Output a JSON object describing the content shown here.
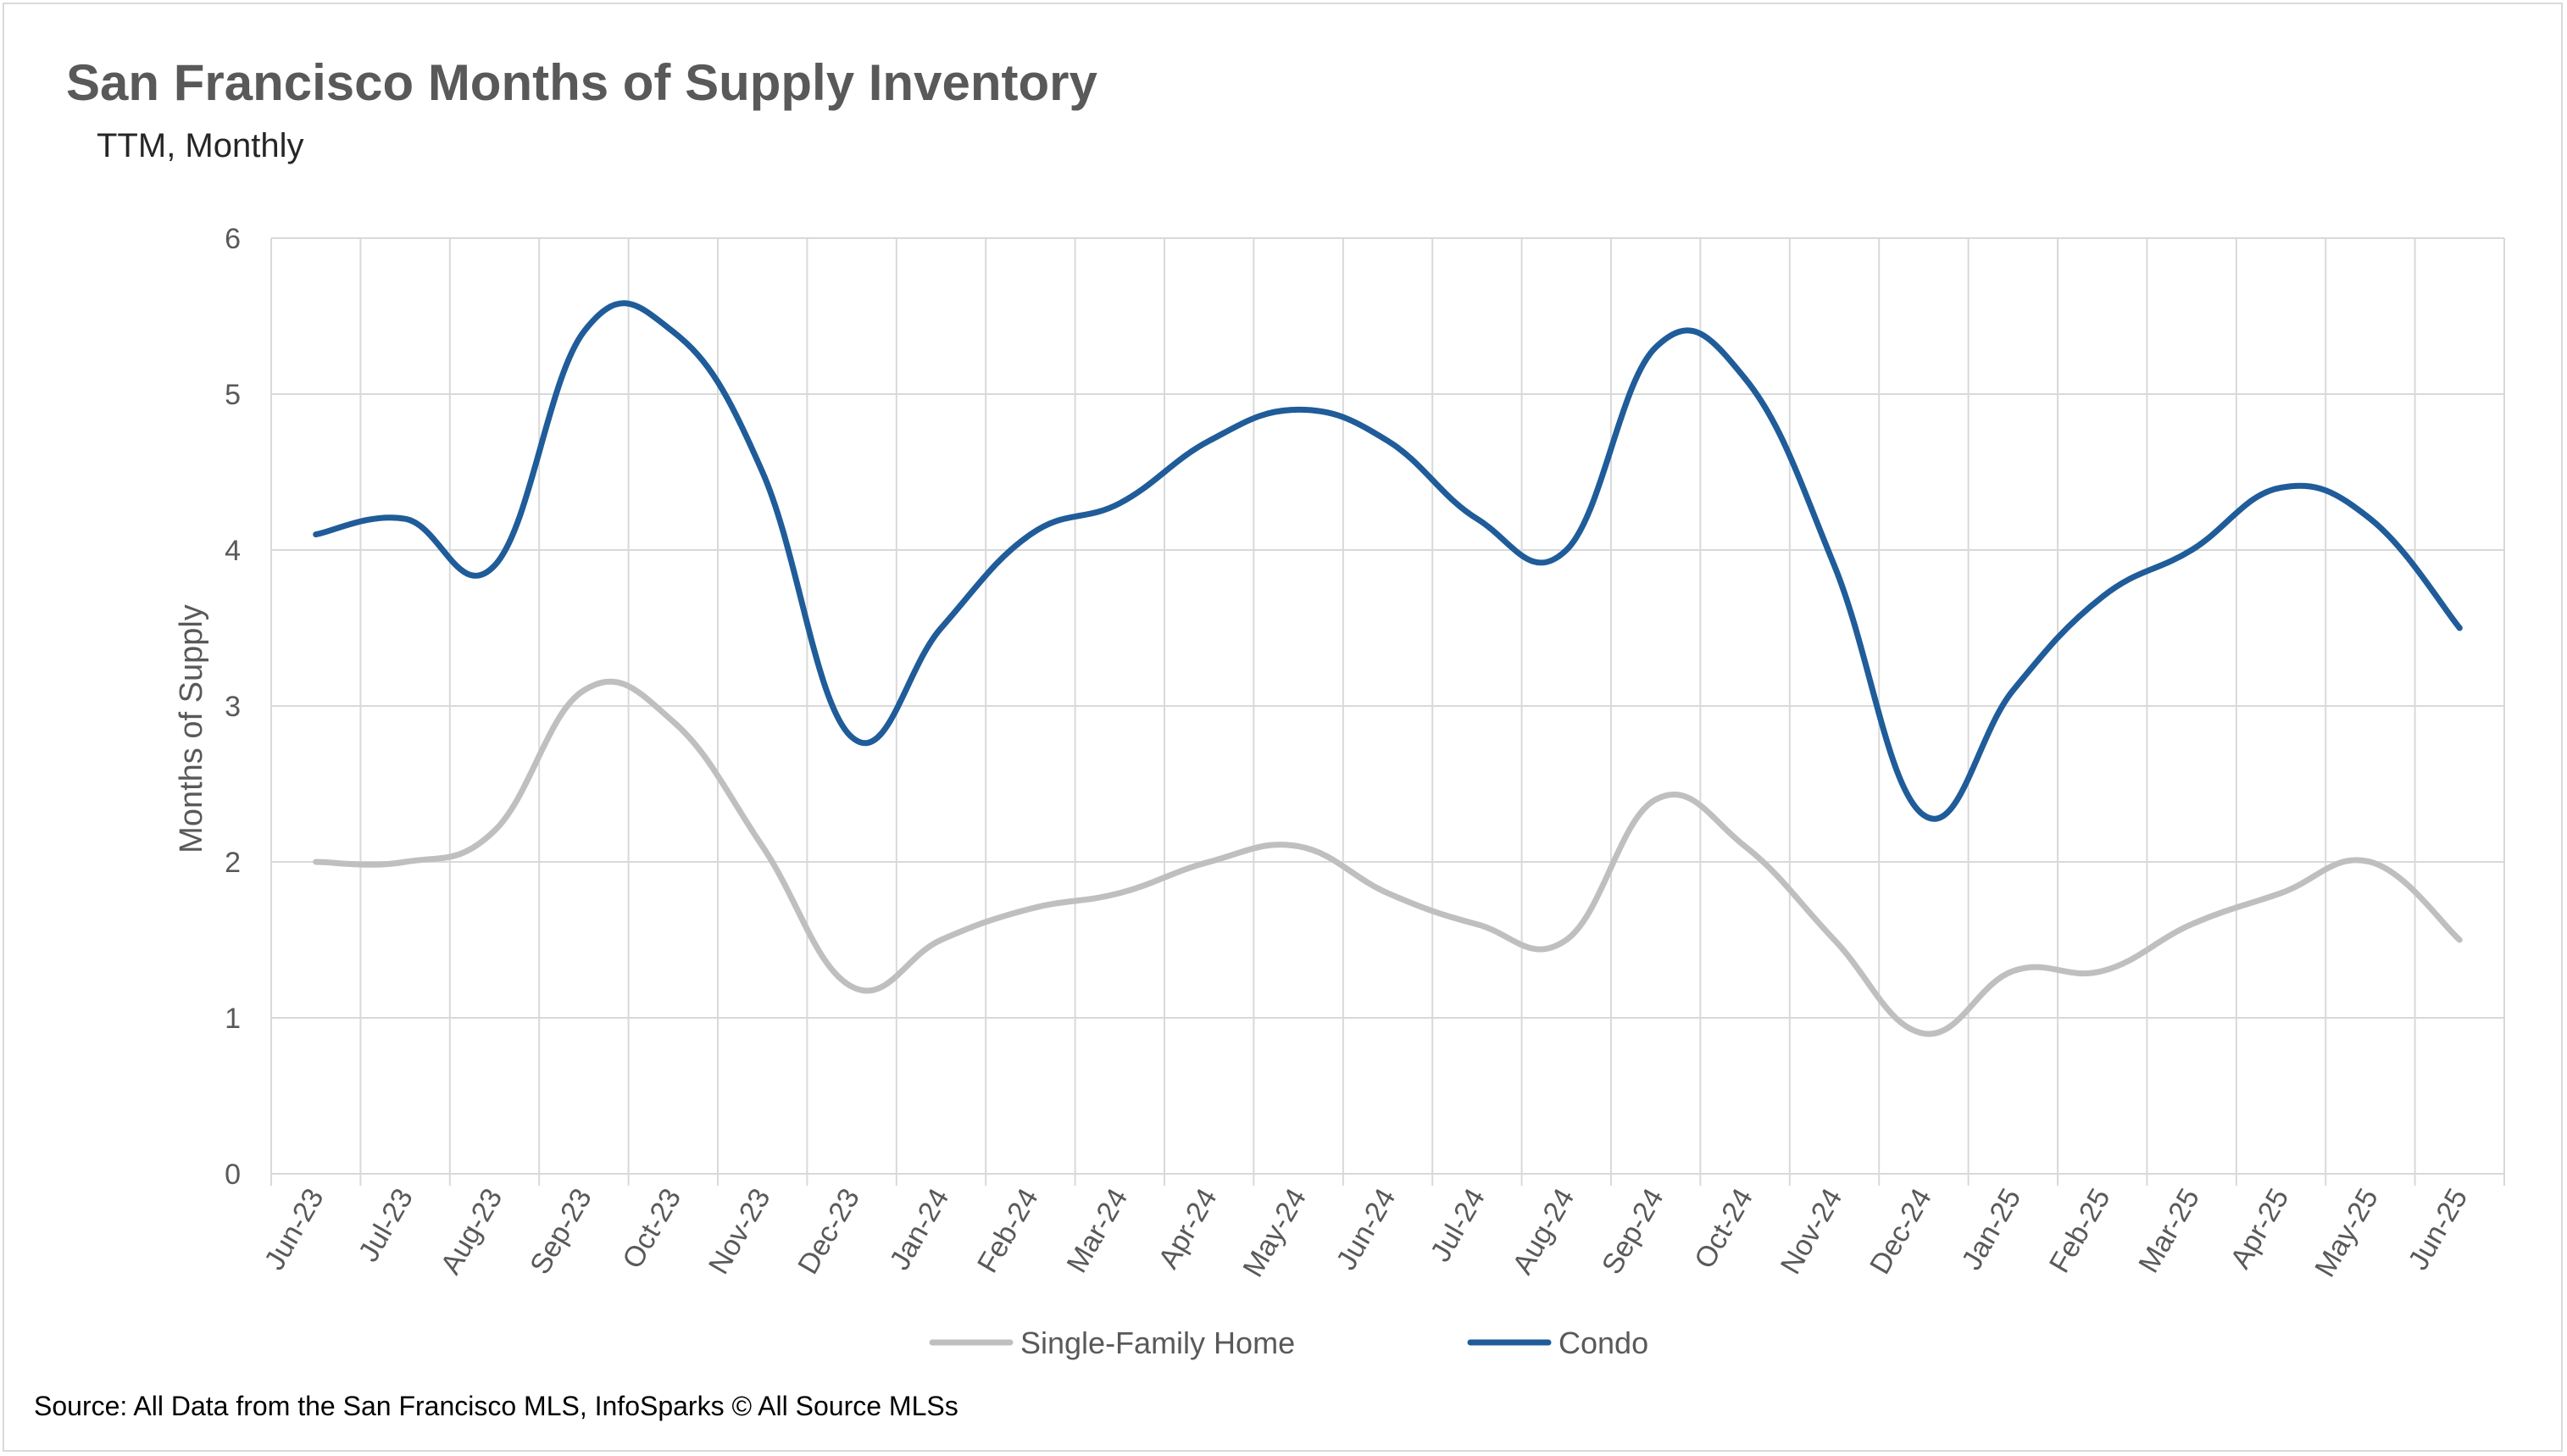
{
  "chart_data": {
    "type": "line",
    "title": "San Francisco Months of Supply Inventory",
    "subtitle": "TTM, Monthly",
    "ylabel": "Months of Supply",
    "xlabel": "",
    "ylim": [
      0,
      6
    ],
    "yticks": [
      "0",
      "1",
      "2",
      "3",
      "4",
      "5",
      "6"
    ],
    "grid": true,
    "legend_position": "bottom",
    "categories": [
      "Jun-23",
      "Jul-23",
      "Aug-23",
      "Sep-23",
      "Oct-23",
      "Nov-23",
      "Dec-23",
      "Jan-24",
      "Feb-24",
      "Mar-24",
      "Apr-24",
      "May-24",
      "Jun-24",
      "Jul-24",
      "Aug-24",
      "Sep-24",
      "Oct-24",
      "Nov-24",
      "Dec-24",
      "Jan-25",
      "Feb-25",
      "Mar-25",
      "Apr-25",
      "May-25",
      "Jun-25"
    ],
    "series": [
      {
        "name": "Single-Family Home",
        "color": "#bfbfbf",
        "values": [
          2.0,
          2.0,
          2.2,
          3.1,
          2.9,
          2.1,
          1.2,
          1.5,
          1.7,
          1.8,
          2.0,
          2.1,
          1.8,
          1.6,
          1.5,
          2.4,
          2.1,
          1.5,
          0.9,
          1.3,
          1.3,
          1.6,
          1.8,
          2.0,
          1.5
        ]
      },
      {
        "name": "Condo",
        "color": "#1f5c99",
        "values": [
          4.1,
          4.2,
          3.9,
          5.4,
          5.4,
          4.5,
          2.8,
          3.5,
          4.1,
          4.3,
          4.7,
          4.9,
          4.7,
          4.2,
          4.0,
          5.3,
          5.1,
          3.9,
          2.3,
          3.1,
          3.7,
          4.0,
          4.4,
          4.2,
          3.5
        ]
      }
    ],
    "source": "Source: All Data from the San Francisco MLS, InfoSparks © All Source MLSs"
  }
}
